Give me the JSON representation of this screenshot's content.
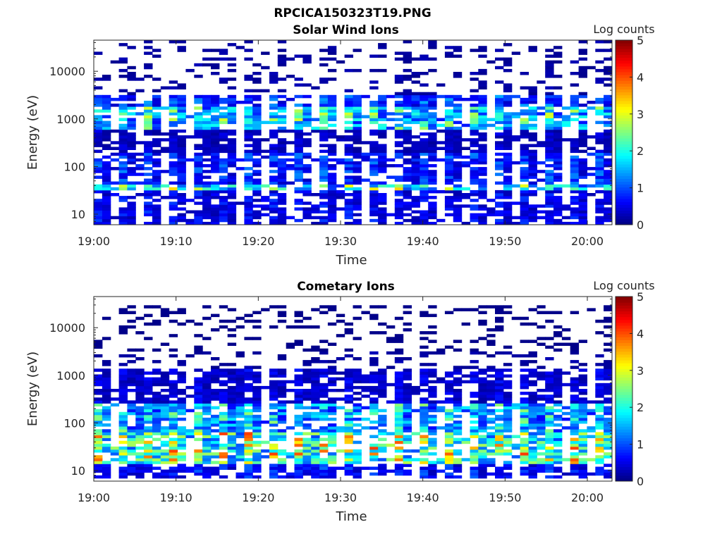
{
  "figure_title": "RPCICA150323T19.PNG",
  "chart_data": [
    {
      "type": "heatmap",
      "title": "Solar Wind Ions",
      "xlabel": "Time",
      "ylabel": "Energy (eV)",
      "x_ticks": [
        "19:00",
        "19:10",
        "19:20",
        "19:30",
        "19:40",
        "19:50",
        "20:00"
      ],
      "y_ticks": [
        "10",
        "100",
        "1000",
        "10000"
      ],
      "y_scale": "log",
      "ylim": [
        6,
        45000
      ],
      "colorbar_label": "Log counts",
      "colorbar_ticks": [
        "0",
        "1",
        "2",
        "3",
        "4",
        "5"
      ],
      "clim": [
        0,
        5
      ],
      "colormap": "jet",
      "bands": [
        {
          "e_min": 6,
          "e_max": 30,
          "level": 0.5
        },
        {
          "e_min": 15,
          "e_max": 40,
          "level": 1.8
        },
        {
          "e_min": 40,
          "e_max": 200,
          "level": 0.7
        },
        {
          "e_min": 200,
          "e_max": 600,
          "level": 0.3
        },
        {
          "e_min": 500,
          "e_max": 1800,
          "level": 1.6
        },
        {
          "e_min": 1800,
          "e_max": 3200,
          "level": 0.8
        },
        {
          "e_min": 3200,
          "e_max": 45000,
          "level": 0.15
        }
      ]
    },
    {
      "type": "heatmap",
      "title": "Cometary Ions",
      "xlabel": "Time",
      "ylabel": "Energy (eV)",
      "x_ticks": [
        "19:00",
        "19:10",
        "19:20",
        "19:30",
        "19:40",
        "19:50",
        "20:00"
      ],
      "y_ticks": [
        "10",
        "100",
        "1000",
        "10000"
      ],
      "y_scale": "log",
      "ylim": [
        6,
        45000
      ],
      "colorbar_label": "Log counts",
      "colorbar_ticks": [
        "0",
        "1",
        "2",
        "3",
        "4",
        "5"
      ],
      "clim": [
        0,
        5
      ],
      "colormap": "jet",
      "bands": [
        {
          "e_min": 7,
          "e_max": 13,
          "level": 0.6
        },
        {
          "e_min": 13,
          "e_max": 60,
          "level": 2.2
        },
        {
          "e_min": 60,
          "e_max": 250,
          "level": 1.4
        },
        {
          "e_min": 250,
          "e_max": 1300,
          "level": 0.4
        },
        {
          "e_min": 1300,
          "e_max": 3000,
          "level": 0.15
        },
        {
          "e_min": 3000,
          "e_max": 30000,
          "level": 0.03
        }
      ]
    }
  ]
}
